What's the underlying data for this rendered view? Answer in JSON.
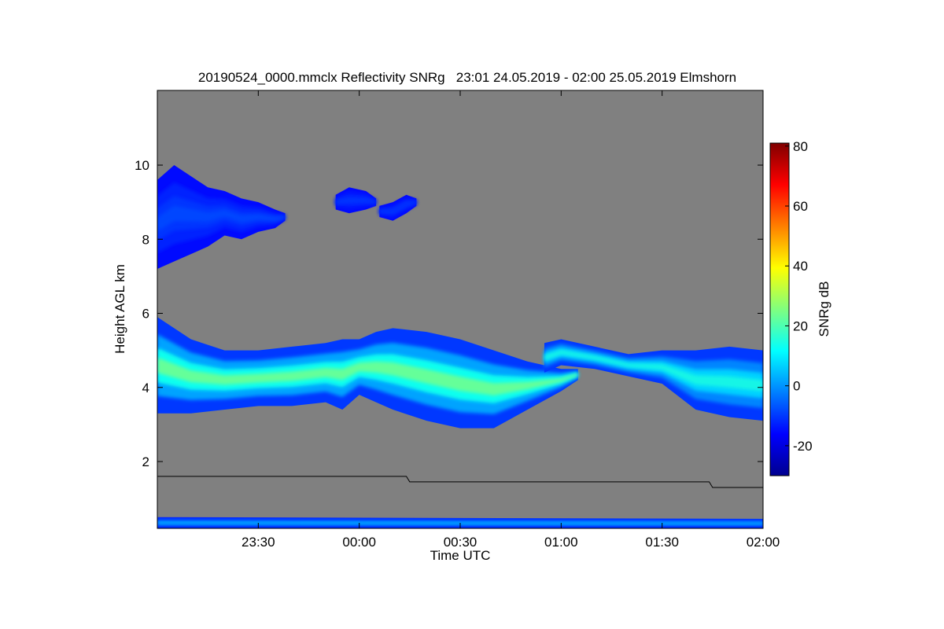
{
  "chart_data": {
    "type": "heatmap",
    "title": "20190524_0000.mmclx Reflectivity SNRg   23:01 24.05.2019 - 02:00 25.05.2019 Elmshorn",
    "xlabel": "Time UTC",
    "ylabel": "Height AGL km",
    "x_unit": "minutes after 23:00 UTC",
    "xlim": [
      0,
      180
    ],
    "ylim": [
      0.2,
      12
    ],
    "xticks": [
      {
        "value": 30,
        "label": "23:30"
      },
      {
        "value": 60,
        "label": "00:00"
      },
      {
        "value": 90,
        "label": "00:30"
      },
      {
        "value": 120,
        "label": "01:00"
      },
      {
        "value": 150,
        "label": "01:30"
      },
      {
        "value": 180,
        "label": "02:00"
      }
    ],
    "yticks": [
      {
        "value": 2,
        "label": "2"
      },
      {
        "value": 4,
        "label": "4"
      },
      {
        "value": 6,
        "label": "6"
      },
      {
        "value": 8,
        "label": "8"
      },
      {
        "value": 10,
        "label": "10"
      }
    ],
    "background_color": "#808080",
    "colorbar": {
      "label": "SNRg dB",
      "range": [
        -30,
        81
      ],
      "ticks": [
        {
          "value": -20,
          "label": "-20"
        },
        {
          "value": 0,
          "label": "0"
        },
        {
          "value": 20,
          "label": "20"
        },
        {
          "value": 40,
          "label": "40"
        },
        {
          "value": 60,
          "label": "60"
        },
        {
          "value": 80,
          "label": "80"
        }
      ],
      "colormap": "jet"
    },
    "layers": [
      {
        "name": "upper-cirrus",
        "snr_edge": -15,
        "snr_core": -8,
        "profile": [
          [
            0,
            7.2,
            9.6
          ],
          [
            5,
            7.4,
            10.0
          ],
          [
            10,
            7.6,
            9.7
          ],
          [
            15,
            7.8,
            9.4
          ],
          [
            20,
            8.1,
            9.3
          ],
          [
            25,
            8.0,
            9.1
          ],
          [
            30,
            8.2,
            9.0
          ],
          [
            35,
            8.3,
            8.8
          ],
          [
            38,
            8.5,
            8.7
          ]
        ]
      },
      {
        "name": "small-cloud-a",
        "snr_edge": -15,
        "snr_core": -10,
        "profile": [
          [
            53,
            8.8,
            9.2
          ],
          [
            57,
            8.7,
            9.4
          ],
          [
            62,
            8.8,
            9.3
          ],
          [
            65,
            8.9,
            9.1
          ]
        ]
      },
      {
        "name": "small-cloud-b",
        "snr_edge": -15,
        "snr_core": -10,
        "profile": [
          [
            66,
            8.6,
            8.9
          ],
          [
            70,
            8.5,
            9.0
          ],
          [
            74,
            8.7,
            9.2
          ],
          [
            77,
            8.9,
            9.1
          ]
        ]
      },
      {
        "name": "main-layer",
        "snr_edge": -10,
        "snr_core": 25,
        "profile": [
          [
            0,
            3.3,
            5.9
          ],
          [
            10,
            3.3,
            5.3
          ],
          [
            20,
            3.4,
            5.0
          ],
          [
            30,
            3.5,
            5.0
          ],
          [
            40,
            3.5,
            5.1
          ],
          [
            50,
            3.6,
            5.2
          ],
          [
            55,
            3.4,
            5.3
          ],
          [
            60,
            3.8,
            5.3
          ],
          [
            65,
            3.6,
            5.5
          ],
          [
            70,
            3.4,
            5.6
          ],
          [
            80,
            3.1,
            5.5
          ],
          [
            90,
            2.9,
            5.3
          ],
          [
            100,
            2.9,
            5.0
          ],
          [
            110,
            3.4,
            4.7
          ],
          [
            120,
            3.9,
            4.5
          ],
          [
            125,
            4.2,
            4.5
          ]
        ]
      },
      {
        "name": "second-layer",
        "snr_edge": -10,
        "snr_core": 15,
        "profile": [
          [
            115,
            4.4,
            5.2
          ],
          [
            120,
            4.6,
            5.3
          ],
          [
            130,
            4.5,
            5.1
          ],
          [
            140,
            4.3,
            4.9
          ],
          [
            150,
            4.1,
            5.0
          ],
          [
            160,
            3.4,
            5.0
          ],
          [
            170,
            3.2,
            5.1
          ],
          [
            180,
            3.1,
            5.0
          ]
        ]
      },
      {
        "name": "ground-clutter",
        "snr_edge": -12,
        "snr_core": 5,
        "profile": [
          [
            0,
            0.2,
            0.5
          ],
          [
            180,
            0.2,
            0.45
          ]
        ]
      }
    ],
    "boundary_line": [
      [
        0,
        1.6
      ],
      [
        74,
        1.6
      ],
      [
        75,
        1.45
      ],
      [
        164,
        1.45
      ],
      [
        165,
        1.3
      ],
      [
        180,
        1.3
      ]
    ]
  }
}
